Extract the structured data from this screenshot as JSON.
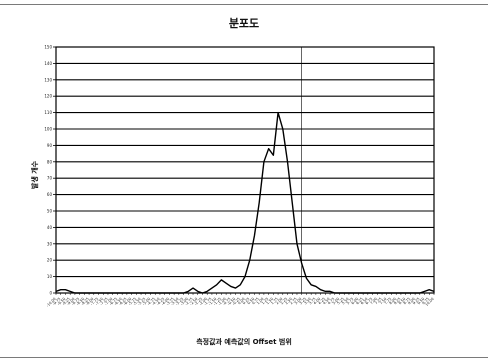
{
  "chart_data": {
    "type": "line",
    "title": "분포도",
    "xlabel": "측정값과 예측값의 Offset 범위",
    "ylabel": "발생 개수",
    "ylim": [
      0,
      150
    ],
    "yticks": [
      0,
      10,
      20,
      30,
      40,
      50,
      60,
      70,
      80,
      90,
      100,
      110,
      120,
      130,
      140,
      150
    ],
    "grid": true,
    "legend": "none",
    "reference_line_x_index": 52,
    "x": [
      "-10.00",
      "-9.75",
      "-9.50",
      "-9.25",
      "-9.00",
      "-8.75",
      "-8.50",
      "-8.25",
      "-8.00",
      "-7.75",
      "-7.50",
      "-7.25",
      "-7.00",
      "-6.75",
      "-6.50",
      "-6.25",
      "-6.00",
      "-5.75",
      "-5.50",
      "-5.25",
      "-5.00",
      "-4.75",
      "-4.50",
      "-4.25",
      "-4.00",
      "-3.75",
      "-3.50",
      "-3.25",
      "-3.00",
      "-2.75",
      "-2.50",
      "-2.25",
      "-2.00",
      "-1.75",
      "-1.50",
      "-1.25",
      "-1.00",
      "-0.75",
      "-0.50",
      "-0.25",
      "0.00",
      "0.25",
      "0.50",
      "0.75",
      "1.00",
      "1.25",
      "1.50",
      "1.75",
      "2.00",
      "2.25",
      "2.50",
      "2.75",
      "3.00",
      "3.25",
      "3.50",
      "3.75",
      "4.00",
      "4.25",
      "4.50",
      "4.75",
      "5.00",
      "5.25",
      "5.50",
      "5.75",
      "6.00",
      "6.25",
      "6.50",
      "6.75",
      "7.00",
      "7.25",
      "7.50",
      "7.75",
      "8.00",
      "8.25",
      "8.50",
      "8.75",
      "9.00",
      "9.25",
      "9.50",
      "9.75",
      "10.00"
    ],
    "series": [
      {
        "color": "#000000",
        "values": [
          1,
          2,
          2,
          1,
          0,
          0,
          0,
          0,
          0,
          0,
          0,
          0,
          0,
          0,
          0,
          0,
          0,
          0,
          0,
          0,
          0,
          0,
          0,
          0,
          0,
          0,
          0,
          0,
          1,
          3,
          1,
          0,
          1,
          3,
          5,
          8,
          6,
          4,
          3,
          5,
          10,
          20,
          35,
          55,
          80,
          88,
          84,
          110,
          100,
          80,
          55,
          30,
          18,
          9,
          5,
          4,
          2,
          1,
          1,
          0,
          0,
          0,
          0,
          0,
          0,
          0,
          0,
          0,
          0,
          0,
          0,
          0,
          0,
          0,
          0,
          0,
          0,
          0,
          1,
          2,
          1
        ]
      }
    ]
  }
}
